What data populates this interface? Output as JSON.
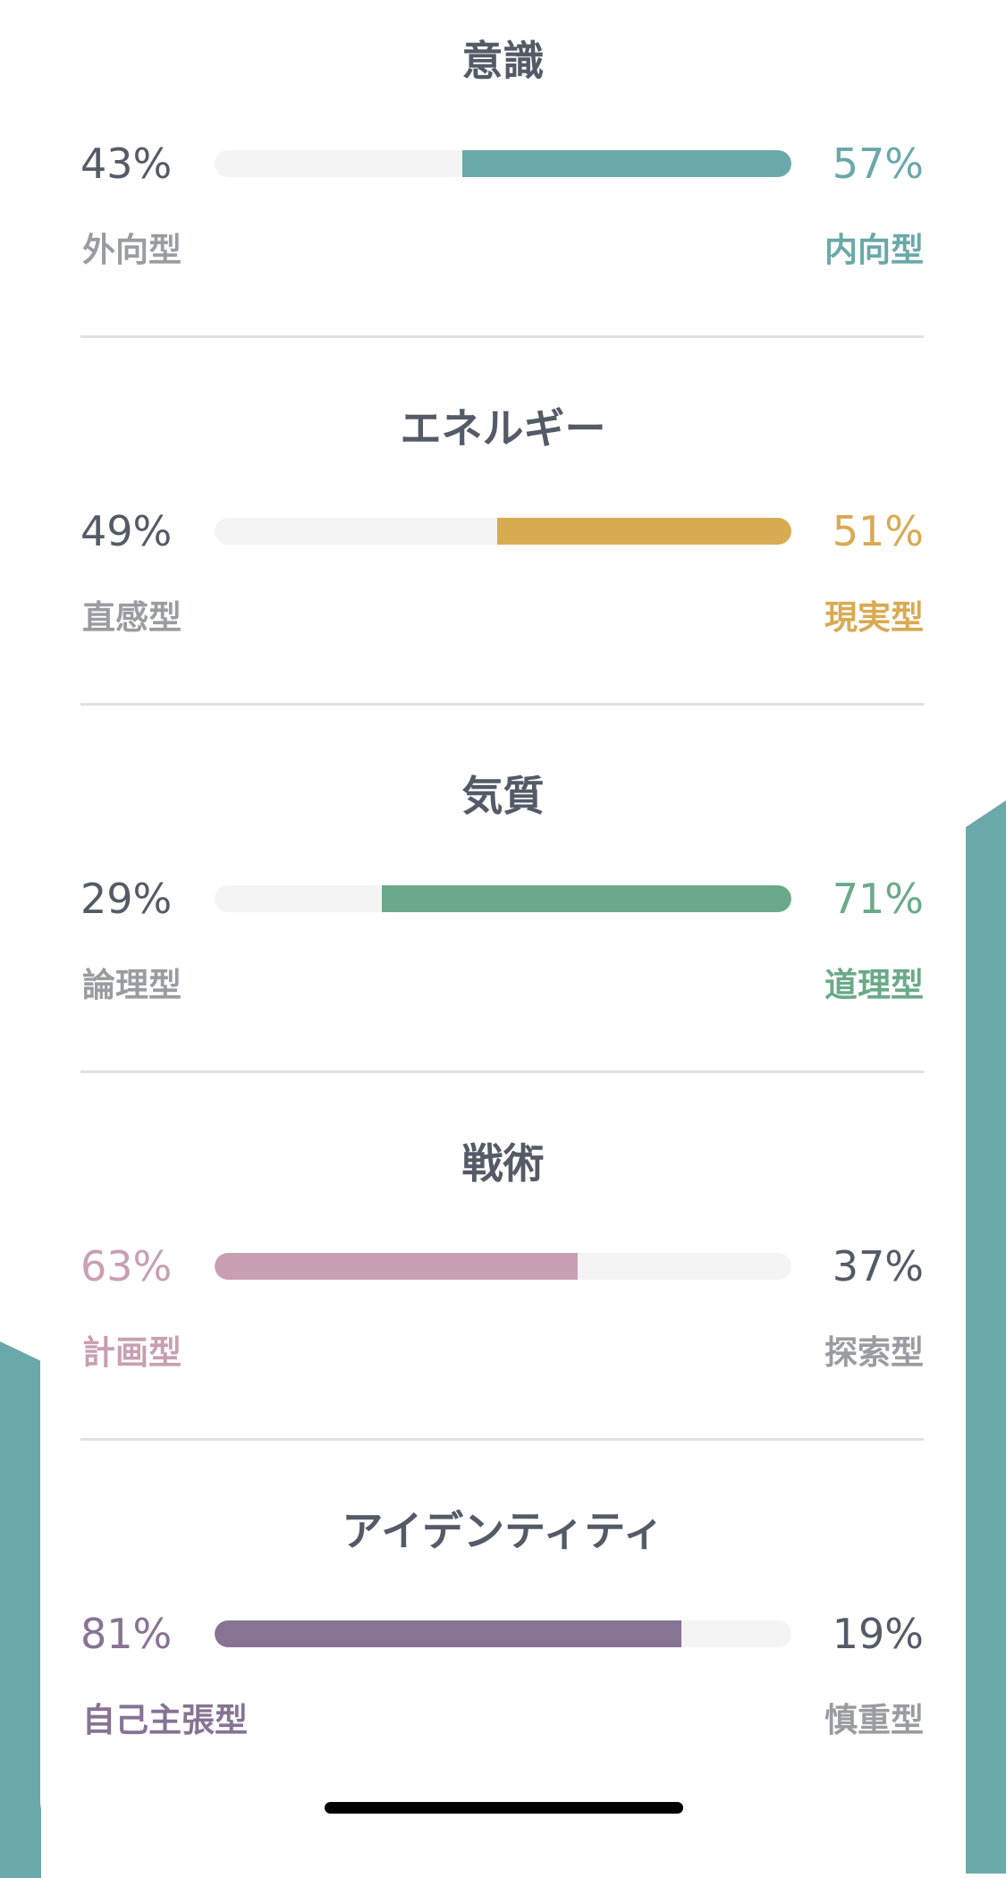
{
  "colors": {
    "background_accent": "#6aa8a9",
    "neutral_text": "#545b67",
    "neutral_label": "#9a9ca2",
    "track": "#f4f4f4"
  },
  "sections": [
    {
      "title": "意識",
      "left_pct": "43%",
      "right_pct": "57%",
      "left_label": "外向型",
      "right_label": "内向型",
      "dominant": "right",
      "dominant_percent": 57,
      "color": "#6aa8a9"
    },
    {
      "title": "エネルギー",
      "left_pct": "49%",
      "right_pct": "51%",
      "left_label": "直感型",
      "right_label": "現実型",
      "dominant": "right",
      "dominant_percent": 51,
      "color": "#d8aa52"
    },
    {
      "title": "気質",
      "left_pct": "29%",
      "right_pct": "71%",
      "left_label": "論理型",
      "right_label": "道理型",
      "dominant": "right",
      "dominant_percent": 71,
      "color": "#6aaa88"
    },
    {
      "title": "戦術",
      "left_pct": "63%",
      "right_pct": "37%",
      "left_label": "計画型",
      "right_label": "探索型",
      "dominant": "left",
      "dominant_percent": 63,
      "color": "#c89fb3"
    },
    {
      "title": "アイデンティティ",
      "left_pct": "81%",
      "right_pct": "19%",
      "left_label": "自己主張型",
      "right_label": "慎重型",
      "dominant": "left",
      "dominant_percent": 81,
      "color": "#877393"
    }
  ]
}
